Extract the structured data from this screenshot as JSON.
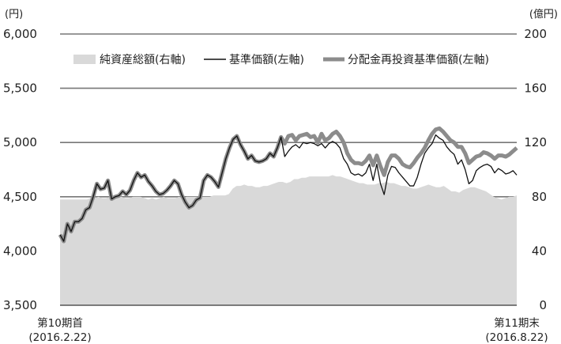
{
  "chart_data": {
    "type": "line",
    "legend_placement": "top",
    "y_left": {
      "unit": "(円)",
      "range": [
        3500,
        6000
      ],
      "ticks": [
        "3,500",
        "4,000",
        "4,500",
        "5,000",
        "5,500",
        "6,000"
      ]
    },
    "y_right": {
      "unit": "(億円)",
      "range": [
        0,
        200
      ],
      "ticks": [
        "0",
        "40",
        "80",
        "120",
        "160",
        "200"
      ]
    },
    "x_labels": {
      "start": {
        "line1": "第10期首",
        "line2": "(2016.2.22)"
      },
      "end": {
        "line1": "第11期末",
        "line2": "(2016.8.22)"
      }
    },
    "area_series": {
      "name": "純資産総額(右軸)",
      "color": "#d9d9d9",
      "values": [
        78,
        78,
        78,
        78,
        78,
        78,
        78,
        78,
        79,
        79,
        80,
        79,
        79,
        80,
        79,
        80,
        80,
        79,
        79,
        80,
        80,
        80,
        79,
        78,
        79,
        78,
        79,
        80,
        79,
        79,
        79,
        80,
        79,
        80,
        80,
        80,
        80,
        80,
        80,
        80,
        81,
        81,
        81,
        81,
        82,
        86,
        88,
        88,
        89,
        88,
        88,
        87,
        87,
        88,
        88,
        89,
        90,
        91,
        91,
        90,
        91,
        93,
        93,
        94,
        94,
        95,
        95,
        95,
        95,
        95,
        95,
        96,
        95,
        95,
        94,
        93,
        92,
        91,
        90,
        90,
        89,
        89,
        89,
        90,
        90,
        91,
        90,
        90,
        89,
        88,
        88,
        87,
        86,
        86,
        87,
        88,
        89,
        88,
        87,
        87,
        88,
        86,
        84,
        84,
        83,
        85,
        86,
        87,
        87,
        86,
        85,
        84,
        82,
        80,
        79,
        78,
        79,
        80,
        80,
        81
      ]
    },
    "base_price": {
      "name": "基準価額(左軸)",
      "color": "#111111",
      "values": [
        4150,
        4090,
        4250,
        4180,
        4270,
        4270,
        4300,
        4380,
        4400,
        4500,
        4620,
        4570,
        4580,
        4650,
        4480,
        4500,
        4510,
        4550,
        4520,
        4560,
        4650,
        4720,
        4680,
        4700,
        4640,
        4600,
        4550,
        4520,
        4530,
        4560,
        4600,
        4650,
        4620,
        4520,
        4450,
        4400,
        4420,
        4470,
        4490,
        4650,
        4700,
        4680,
        4640,
        4590,
        4720,
        4850,
        4950,
        5030,
        5060,
        4980,
        4920,
        4850,
        4880,
        4830,
        4820,
        4830,
        4850,
        4900,
        4870,
        4950,
        5050,
        4870,
        4920,
        4960,
        4980,
        4950,
        5000,
        4990,
        5000,
        4990,
        4970,
        4990,
        4950,
        4990,
        5010,
        4990,
        4950,
        4850,
        4800,
        4720,
        4700,
        4710,
        4690,
        4720,
        4800,
        4650,
        4800,
        4620,
        4520,
        4700,
        4780,
        4770,
        4720,
        4680,
        4640,
        4600,
        4600,
        4680,
        4800,
        4900,
        4950,
        4990,
        5070,
        5040,
        5020,
        4960,
        4920,
        4890,
        4800,
        4840,
        4750,
        4620,
        4650,
        4740,
        4770,
        4790,
        4800,
        4780,
        4720,
        4760,
        4740,
        4710,
        4720,
        4740,
        4700
      ]
    },
    "reinvested_price": {
      "name": "分配金再投資基準価額(左軸)",
      "color": "#8c8c8c",
      "values": [
        4150,
        4090,
        4250,
        4180,
        4270,
        4270,
        4300,
        4380,
        4400,
        4500,
        4620,
        4570,
        4580,
        4650,
        4480,
        4500,
        4510,
        4550,
        4520,
        4560,
        4650,
        4720,
        4680,
        4700,
        4640,
        4600,
        4550,
        4520,
        4530,
        4560,
        4600,
        4650,
        4620,
        4520,
        4450,
        4400,
        4420,
        4470,
        4490,
        4650,
        4700,
        4680,
        4640,
        4590,
        4720,
        4850,
        4950,
        5030,
        5060,
        4980,
        4920,
        4850,
        4880,
        4830,
        4820,
        4830,
        4850,
        4900,
        4870,
        4950,
        5050,
        4990,
        5060,
        5070,
        5020,
        5060,
        5070,
        5080,
        5050,
        5060,
        5000,
        5080,
        5020,
        5040,
        5080,
        5100,
        5060,
        5000,
        4900,
        4840,
        4810,
        4810,
        4800,
        4830,
        4880,
        4790,
        4880,
        4780,
        4700,
        4820,
        4880,
        4880,
        4850,
        4800,
        4780,
        4770,
        4810,
        4860,
        4900,
        4950,
        5020,
        5080,
        5120,
        5130,
        5100,
        5060,
        5020,
        5000,
        4960,
        4960,
        4900,
        4810,
        4840,
        4870,
        4880,
        4910,
        4900,
        4880,
        4850,
        4880,
        4880,
        4870,
        4890,
        4920,
        4950
      ]
    },
    "legend": [
      {
        "label": "純資産総額(右軸)",
        "kind": "area"
      },
      {
        "label": "基準価額(左軸)",
        "kind": "thin-line"
      },
      {
        "label": "分配金再投資基準価額(左軸)",
        "kind": "thick-line"
      }
    ]
  }
}
